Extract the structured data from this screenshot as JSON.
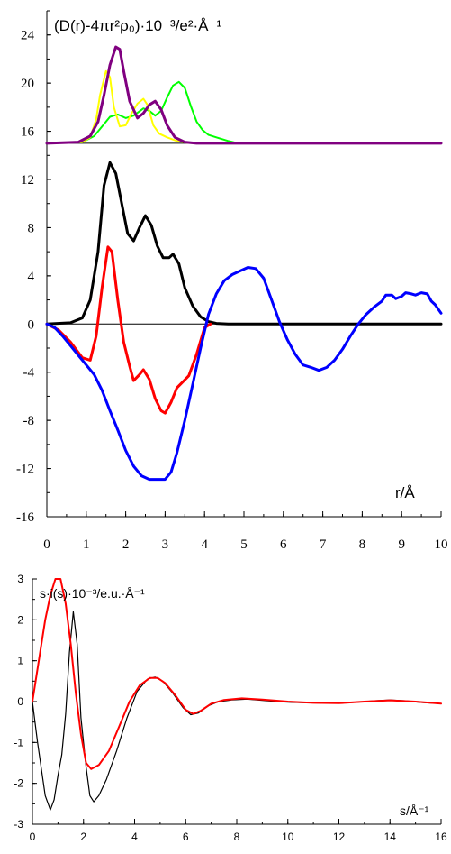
{
  "colors": {
    "black": "#000000",
    "red": "#ff0000",
    "blue": "#0000ff",
    "green": "#00ff00",
    "yellow": "#ffff00",
    "purple": "#800080",
    "dark_red": "#6a0000"
  },
  "chart_data": [
    {
      "type": "line",
      "ylabel": "(D(r)-4πr²ρ₀)·10⁻³/e²·Å⁻¹",
      "xlabel": "r/Å",
      "xlim": [
        0,
        10
      ],
      "ylim": [
        -16,
        26
      ],
      "x_ticks": [
        "0",
        "1",
        "2",
        "3",
        "4",
        "5",
        "6",
        "7",
        "8",
        "9",
        "10"
      ],
      "y_ticks": [
        "24",
        "20",
        "16",
        "12",
        "8",
        "4",
        "0",
        "-4",
        "-8",
        "-12",
        "-16"
      ],
      "baselines": [
        0,
        15
      ],
      "series": [
        {
          "color": "black",
          "width": 3,
          "points": [
            [
              0,
              0
            ],
            [
              0.6,
              0.1
            ],
            [
              0.9,
              0.5
            ],
            [
              1.1,
              2
            ],
            [
              1.3,
              6
            ],
            [
              1.45,
              11.5
            ],
            [
              1.6,
              13.4
            ],
            [
              1.75,
              12.5
            ],
            [
              1.9,
              10
            ],
            [
              2.05,
              7.5
            ],
            [
              2.2,
              6.9
            ],
            [
              2.35,
              8
            ],
            [
              2.5,
              9
            ],
            [
              2.65,
              8.2
            ],
            [
              2.8,
              6.5
            ],
            [
              2.95,
              5.5
            ],
            [
              3.1,
              5.5
            ],
            [
              3.2,
              5.8
            ],
            [
              3.35,
              5
            ],
            [
              3.5,
              3
            ],
            [
              3.7,
              1.5
            ],
            [
              3.9,
              0.6
            ],
            [
              4.1,
              0.2
            ],
            [
              4.3,
              0.05
            ],
            [
              4.6,
              0
            ],
            [
              10,
              0
            ]
          ]
        },
        {
          "color": "red",
          "width": 3,
          "points": [
            [
              0,
              0
            ],
            [
              0.3,
              -0.5
            ],
            [
              0.6,
              -1.5
            ],
            [
              0.9,
              -2.8
            ],
            [
              1.1,
              -3
            ],
            [
              1.25,
              -1
            ],
            [
              1.4,
              3
            ],
            [
              1.55,
              6.4
            ],
            [
              1.65,
              6
            ],
            [
              1.8,
              2
            ],
            [
              1.95,
              -1.5
            ],
            [
              2.1,
              -3.5
            ],
            [
              2.2,
              -4.7
            ],
            [
              2.35,
              -4.2
            ],
            [
              2.45,
              -3.8
            ],
            [
              2.6,
              -4.6
            ],
            [
              2.75,
              -6.2
            ],
            [
              2.9,
              -7.2
            ],
            [
              3.0,
              -7.4
            ],
            [
              3.15,
              -6.5
            ],
            [
              3.3,
              -5.3
            ],
            [
              3.45,
              -4.8
            ],
            [
              3.6,
              -4.3
            ],
            [
              3.8,
              -2.5
            ],
            [
              4.0,
              -0.3
            ],
            [
              4.15,
              0
            ]
          ]
        },
        {
          "color": "blue",
          "width": 3,
          "points": [
            [
              0,
              0
            ],
            [
              0.2,
              -0.3
            ],
            [
              0.4,
              -1.0
            ],
            [
              0.6,
              -1.8
            ],
            [
              0.8,
              -2.6
            ],
            [
              1.0,
              -3.4
            ],
            [
              1.2,
              -4.2
            ],
            [
              1.4,
              -5.5
            ],
            [
              1.6,
              -7.2
            ],
            [
              1.8,
              -8.8
            ],
            [
              2.0,
              -10.5
            ],
            [
              2.2,
              -11.8
            ],
            [
              2.4,
              -12.6
            ],
            [
              2.6,
              -12.9
            ],
            [
              3.0,
              -12.9
            ],
            [
              3.15,
              -12.3
            ],
            [
              3.3,
              -10.7
            ],
            [
              3.5,
              -8.0
            ],
            [
              3.7,
              -5.0
            ],
            [
              3.9,
              -2.0
            ],
            [
              4.1,
              0.8
            ],
            [
              4.3,
              2.5
            ],
            [
              4.5,
              3.6
            ],
            [
              4.7,
              4.1
            ],
            [
              4.9,
              4.4
            ],
            [
              5.1,
              4.7
            ],
            [
              5.3,
              4.6
            ],
            [
              5.5,
              3.8
            ],
            [
              5.7,
              2.0
            ],
            [
              5.9,
              0.2
            ],
            [
              6.1,
              -1.3
            ],
            [
              6.3,
              -2.5
            ],
            [
              6.5,
              -3.4
            ],
            [
              6.7,
              -3.6
            ],
            [
              6.9,
              -3.85
            ],
            [
              7.1,
              -3.6
            ],
            [
              7.3,
              -3.0
            ],
            [
              7.5,
              -2.1
            ],
            [
              7.7,
              -1.0
            ],
            [
              7.9,
              0
            ],
            [
              8.1,
              0.8
            ],
            [
              8.3,
              1.4
            ],
            [
              8.5,
              1.9
            ],
            [
              8.6,
              2.4
            ],
            [
              8.75,
              2.4
            ],
            [
              8.85,
              2.1
            ],
            [
              9.0,
              2.3
            ],
            [
              9.1,
              2.6
            ],
            [
              9.25,
              2.5
            ],
            [
              9.35,
              2.4
            ],
            [
              9.5,
              2.6
            ],
            [
              9.65,
              2.5
            ],
            [
              9.75,
              1.9
            ],
            [
              9.85,
              1.6
            ],
            [
              10,
              0.9
            ]
          ]
        },
        {
          "color": "green",
          "width": 2,
          "points": [
            [
              0,
              15
            ],
            [
              0.9,
              15.1
            ],
            [
              1.2,
              15.6
            ],
            [
              1.45,
              16.6
            ],
            [
              1.6,
              17.2
            ],
            [
              1.8,
              17.4
            ],
            [
              2.0,
              17.1
            ],
            [
              2.2,
              17.3
            ],
            [
              2.45,
              17.9
            ],
            [
              2.6,
              17.7
            ],
            [
              2.75,
              17.3
            ],
            [
              2.9,
              17.7
            ],
            [
              3.05,
              18.8
            ],
            [
              3.2,
              19.8
            ],
            [
              3.35,
              20.1
            ],
            [
              3.5,
              19.6
            ],
            [
              3.65,
              18.1
            ],
            [
              3.8,
              16.8
            ],
            [
              3.95,
              16.1
            ],
            [
              4.1,
              15.7
            ],
            [
              4.3,
              15.5
            ],
            [
              4.6,
              15.2
            ],
            [
              4.8,
              15.05
            ],
            [
              10,
              15
            ]
          ]
        },
        {
          "color": "yellow",
          "width": 2,
          "points": [
            [
              0,
              15
            ],
            [
              0.9,
              15.1
            ],
            [
              1.1,
              15.5
            ],
            [
              1.25,
              17
            ],
            [
              1.35,
              19
            ],
            [
              1.5,
              21
            ],
            [
              1.6,
              20.5
            ],
            [
              1.7,
              18
            ],
            [
              1.85,
              16.4
            ],
            [
              2.0,
              16.5
            ],
            [
              2.15,
              17.5
            ],
            [
              2.3,
              18.3
            ],
            [
              2.45,
              18.7
            ],
            [
              2.55,
              18.2
            ],
            [
              2.7,
              16.5
            ],
            [
              2.85,
              15.8
            ],
            [
              3.05,
              15.5
            ],
            [
              3.3,
              15.2
            ],
            [
              3.55,
              15.05
            ],
            [
              3.8,
              15
            ]
          ]
        },
        {
          "color": "purple",
          "width": 3,
          "points": [
            [
              0,
              15
            ],
            [
              0.8,
              15.1
            ],
            [
              1.1,
              15.6
            ],
            [
              1.3,
              16.8
            ],
            [
              1.45,
              19
            ],
            [
              1.6,
              21.5
            ],
            [
              1.75,
              23
            ],
            [
              1.85,
              22.8
            ],
            [
              1.95,
              21
            ],
            [
              2.1,
              18.5
            ],
            [
              2.3,
              17.1
            ],
            [
              2.45,
              17.5
            ],
            [
              2.6,
              18.2
            ],
            [
              2.75,
              18.5
            ],
            [
              2.9,
              17.8
            ],
            [
              3.05,
              16.5
            ],
            [
              3.25,
              15.5
            ],
            [
              3.5,
              15.1
            ],
            [
              3.8,
              15
            ],
            [
              10,
              15
            ]
          ]
        }
      ]
    },
    {
      "type": "line",
      "ylabel": "s·i(s)·10⁻³/e.u.·Å⁻¹",
      "xlabel": "s/Å⁻¹",
      "xlim": [
        0,
        16
      ],
      "ylim": [
        -3,
        3
      ],
      "x_ticks": [
        "0",
        "2",
        "4",
        "6",
        "8",
        "10",
        "12",
        "14",
        "16"
      ],
      "y_ticks": [
        "3",
        "2",
        "1",
        "0",
        "-1",
        "-2",
        "-3"
      ],
      "series": [
        {
          "color": "black",
          "width": 1.2,
          "points": [
            [
              0,
              0
            ],
            [
              0.2,
              -1
            ],
            [
              0.5,
              -2.3
            ],
            [
              0.7,
              -2.65
            ],
            [
              0.85,
              -2.4
            ],
            [
              1.0,
              -1.8
            ],
            [
              1.15,
              -1.3
            ],
            [
              1.3,
              -0.3
            ],
            [
              1.45,
              1.2
            ],
            [
              1.6,
              2.2
            ],
            [
              1.75,
              1.4
            ],
            [
              1.9,
              -0.4
            ],
            [
              2.1,
              -1.6
            ],
            [
              2.25,
              -2.3
            ],
            [
              2.4,
              -2.45
            ],
            [
              2.6,
              -2.3
            ],
            [
              2.9,
              -1.9
            ],
            [
              3.3,
              -1.2
            ],
            [
              3.7,
              -0.4
            ],
            [
              4.1,
              0.25
            ],
            [
              4.5,
              0.55
            ],
            [
              4.8,
              0.6
            ],
            [
              5.1,
              0.5
            ],
            [
              5.5,
              0.2
            ],
            [
              5.9,
              -0.15
            ],
            [
              6.2,
              -0.32
            ],
            [
              6.5,
              -0.28
            ],
            [
              6.9,
              -0.1
            ],
            [
              7.3,
              0
            ],
            [
              7.8,
              0.04
            ],
            [
              8.4,
              0.06
            ],
            [
              9.0,
              0.03
            ],
            [
              9.6,
              0
            ],
            [
              10.2,
              -0.02
            ],
            [
              11,
              -0.03
            ],
            [
              11.8,
              -0.04
            ],
            [
              12.6,
              -0.02
            ],
            [
              13.4,
              0.02
            ],
            [
              14,
              0.04
            ],
            [
              14.6,
              0.02
            ],
            [
              15.2,
              -0.02
            ],
            [
              16,
              -0.05
            ]
          ]
        },
        {
          "color": "red",
          "width": 2,
          "points": [
            [
              0,
              0
            ],
            [
              0.3,
              1.2
            ],
            [
              0.5,
              2
            ],
            [
              0.7,
              2.6
            ],
            [
              0.9,
              3.0
            ],
            [
              1.1,
              3.0
            ],
            [
              1.3,
              2.4
            ],
            [
              1.5,
              1.4
            ],
            [
              1.7,
              0.2
            ],
            [
              1.9,
              -0.8
            ],
            [
              2.1,
              -1.5
            ],
            [
              2.3,
              -1.65
            ],
            [
              2.6,
              -1.55
            ],
            [
              3.0,
              -1.2
            ],
            [
              3.4,
              -0.6
            ],
            [
              3.8,
              0
            ],
            [
              4.2,
              0.4
            ],
            [
              4.6,
              0.58
            ],
            [
              4.9,
              0.58
            ],
            [
              5.2,
              0.45
            ],
            [
              5.6,
              0.15
            ],
            [
              6.0,
              -0.2
            ],
            [
              6.3,
              -0.3
            ],
            [
              6.6,
              -0.22
            ],
            [
              7.0,
              -0.05
            ],
            [
              7.5,
              0.04
            ],
            [
              8.2,
              0.08
            ],
            [
              9,
              0.05
            ],
            [
              10,
              0
            ],
            [
              11,
              -0.03
            ],
            [
              12,
              -0.04
            ],
            [
              13,
              0
            ],
            [
              14,
              0.03
            ],
            [
              15,
              0
            ],
            [
              16,
              -0.05
            ]
          ]
        }
      ]
    }
  ]
}
